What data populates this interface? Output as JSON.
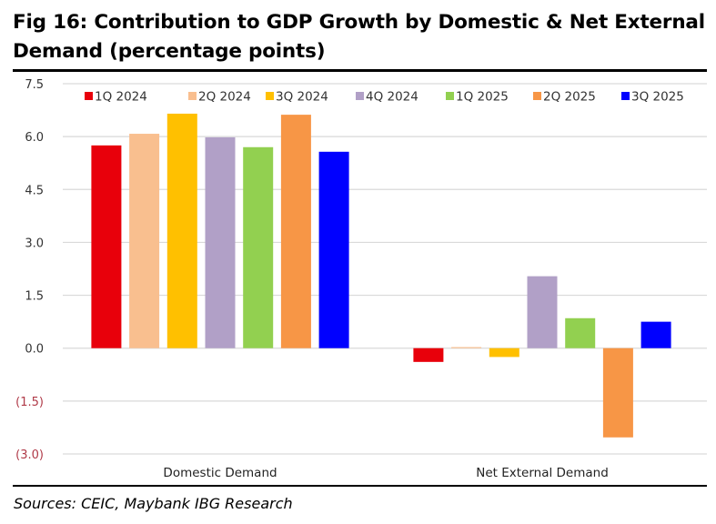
{
  "title": "Fig 16: Contribution to GDP Growth by Domestic & Net External Demand (percentage points)",
  "source": "Sources: CEIC, Maybank IBG Research",
  "chart_data": {
    "type": "bar",
    "title": "Contribution to GDP Growth by Domestic & Net External Demand (percentage points)",
    "xlabel": "",
    "ylabel": "",
    "categories": [
      "Domestic Demand",
      "Net External Demand"
    ],
    "ylim": [
      -3.0,
      7.5
    ],
    "yticks": [
      7.5,
      6.0,
      4.5,
      3.0,
      1.5,
      0.0,
      -1.5,
      -3.0
    ],
    "ytick_labels": [
      "7.5",
      "6.0",
      "4.5",
      "3.0",
      "1.5",
      "0.0",
      "(1.5)",
      "(3.0)"
    ],
    "negative_tick_color": "#b03a48",
    "grid": true,
    "legend_position": "top",
    "series": [
      {
        "name": "1Q 2024",
        "color": "#e8000b",
        "values": [
          5.75,
          -0.39
        ]
      },
      {
        "name": "2Q 2024",
        "color": "#f9bf8f",
        "values": [
          6.08,
          0.03
        ]
      },
      {
        "name": "3Q 2024",
        "color": "#ffc000",
        "values": [
          6.65,
          -0.25
        ]
      },
      {
        "name": "4Q 2024",
        "color": "#b1a0c7",
        "values": [
          5.98,
          2.04
        ]
      },
      {
        "name": "1Q 2025",
        "color": "#92d050",
        "values": [
          5.7,
          0.85
        ]
      },
      {
        "name": "2Q 2025",
        "color": "#f79646",
        "values": [
          6.62,
          -2.53
        ]
      },
      {
        "name": "3Q 2025",
        "color": "#0000ff",
        "values": [
          5.57,
          0.75
        ]
      }
    ]
  }
}
